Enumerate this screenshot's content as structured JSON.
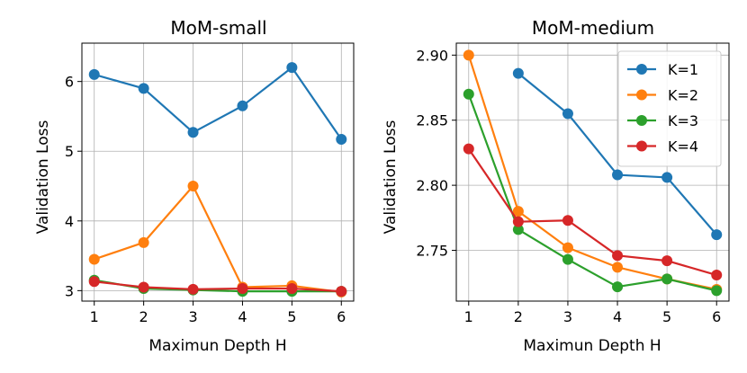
{
  "chart_data": [
    {
      "type": "line",
      "title": "MoM-small",
      "xlabel": "Maximun Depth H",
      "ylabel": "Validation Loss",
      "x": [
        1,
        2,
        3,
        4,
        5,
        6
      ],
      "xticks": [
        "1",
        "2",
        "3",
        "4",
        "5",
        "6"
      ],
      "xlim": [
        0.75,
        6.25
      ],
      "yticks": [
        "3",
        "4",
        "5",
        "6"
      ],
      "yticks_values": [
        3,
        4,
        5,
        6
      ],
      "ylim": [
        2.85,
        6.55
      ],
      "grid": true,
      "legend": false,
      "series": [
        {
          "name": "K=1",
          "color": "#1f77b4",
          "values": [
            6.1,
            5.9,
            5.27,
            5.65,
            6.2,
            5.17
          ]
        },
        {
          "name": "K=2",
          "color": "#ff7f0e",
          "values": [
            3.45,
            3.69,
            4.5,
            3.05,
            3.07,
            2.98
          ]
        },
        {
          "name": "K=3",
          "color": "#2ca02c",
          "values": [
            3.15,
            3.03,
            3.01,
            2.99,
            2.99,
            2.99
          ]
        },
        {
          "name": "K=4",
          "color": "#d62728",
          "values": [
            3.13,
            3.05,
            3.02,
            3.03,
            3.03,
            2.99
          ]
        }
      ]
    },
    {
      "type": "line",
      "title": "MoM-medium",
      "xlabel": "Maximun Depth H",
      "ylabel": "Validation Loss",
      "x": [
        1,
        2,
        3,
        4,
        5,
        6
      ],
      "xticks": [
        "1",
        "2",
        "3",
        "4",
        "5",
        "6"
      ],
      "xlim": [
        0.75,
        6.25
      ],
      "yticks": [
        "2.75",
        "2.80",
        "2.85",
        "2.90"
      ],
      "yticks_values": [
        2.75,
        2.8,
        2.85,
        2.9
      ],
      "ylim": [
        2.711,
        2.9092
      ],
      "grid": true,
      "legend": true,
      "legend_position": "top-right",
      "series": [
        {
          "name": "K=1",
          "color": "#1f77b4",
          "values": [
            null,
            2.886,
            2.855,
            2.808,
            2.806,
            2.762
          ]
        },
        {
          "name": "K=2",
          "color": "#ff7f0e",
          "values": [
            2.9,
            2.78,
            2.752,
            2.737,
            2.728,
            2.72
          ]
        },
        {
          "name": "K=3",
          "color": "#2ca02c",
          "values": [
            2.87,
            2.766,
            2.743,
            2.722,
            2.728,
            2.719
          ]
        },
        {
          "name": "K=4",
          "color": "#d62728",
          "values": [
            2.828,
            2.772,
            2.773,
            2.746,
            2.742,
            2.731
          ]
        }
      ]
    }
  ]
}
